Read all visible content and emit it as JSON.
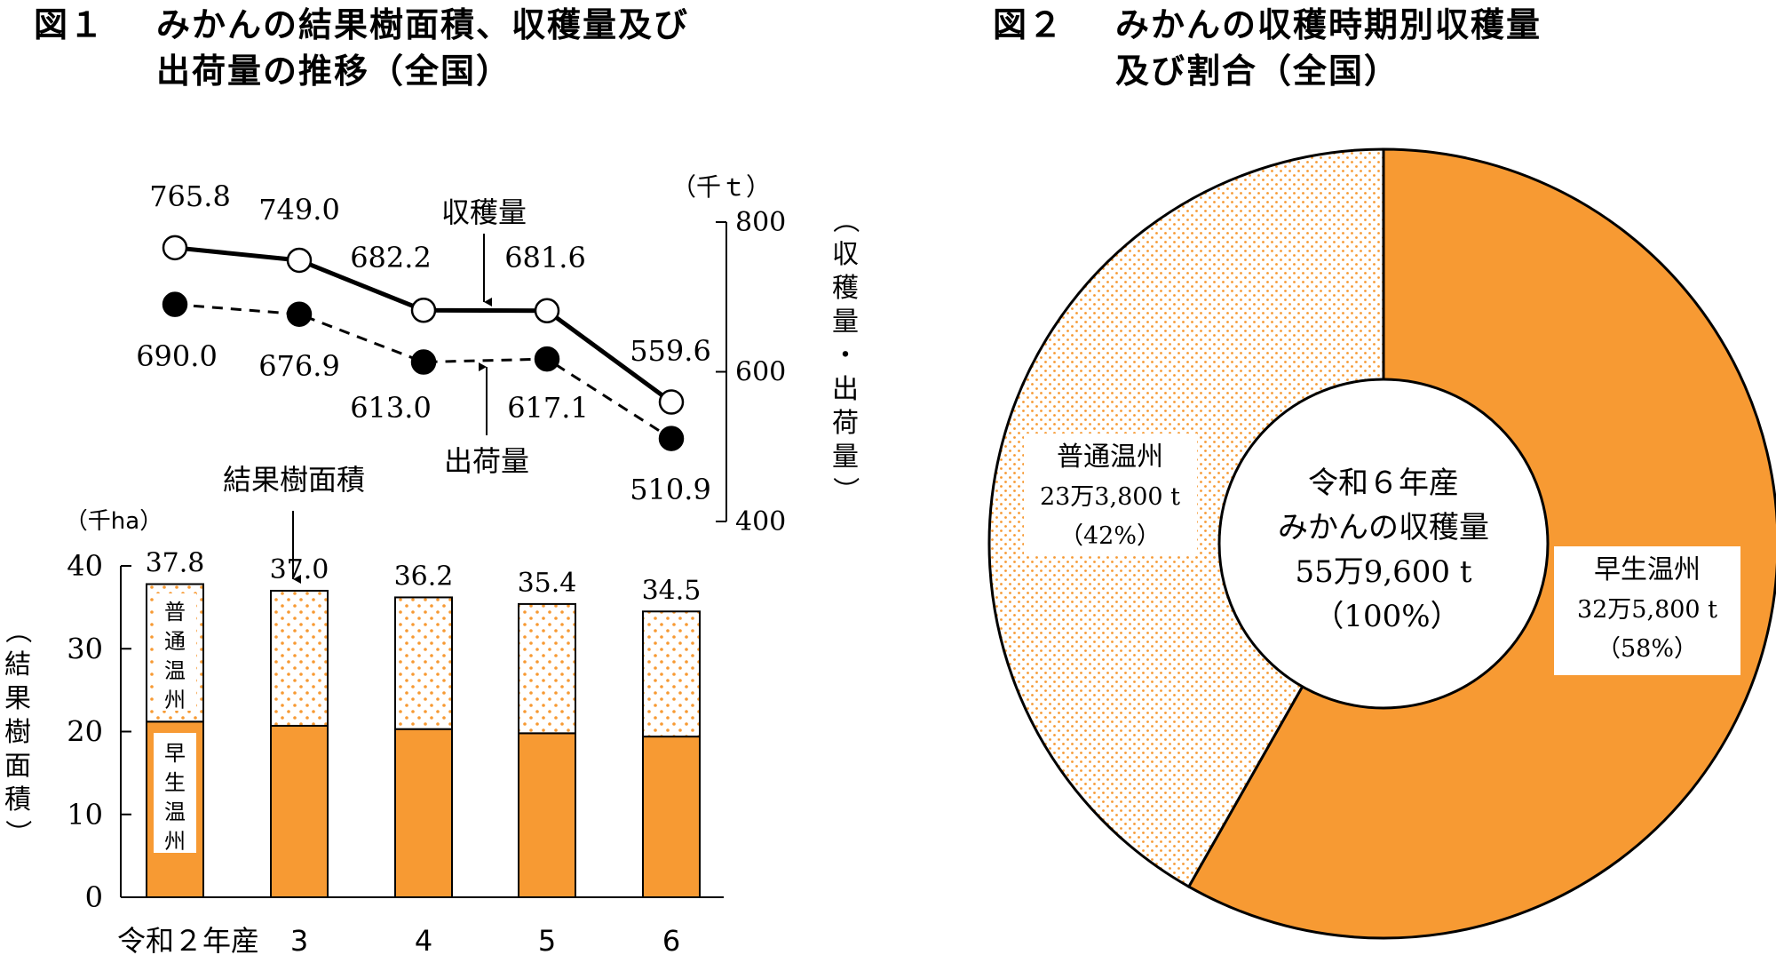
{
  "figure1": {
    "number": "図１",
    "title_line1": "みかんの結果樹面積、収穫量及び",
    "title_line2": "出荷量の推移（全国）"
  },
  "figure2": {
    "number": "図２",
    "title_line1": "みかんの収穫時期別収穫量",
    "title_line2": "及び割合（全国）"
  },
  "chart_data": [
    {
      "type": "line",
      "categories": [
        "令和２年産",
        "3",
        "4",
        "5",
        "6"
      ],
      "series": [
        {
          "name": "収穫量",
          "values": [
            765.8,
            749.0,
            682.2,
            681.6,
            559.6
          ],
          "value_labels": [
            "765.8",
            "749.0",
            "682.2",
            "681.6",
            "559.6"
          ],
          "marker": "open-circle",
          "line": "solid"
        },
        {
          "name": "出荷量",
          "values": [
            690.0,
            676.9,
            613.0,
            617.1,
            510.9
          ],
          "value_labels": [
            "690.0",
            "676.9",
            "613.0",
            "617.1",
            "510.9"
          ],
          "marker": "filled-circle",
          "line": "dashed"
        }
      ],
      "yaxis": {
        "label": "（収穫量・出荷量）",
        "unit": "（千ｔ）",
        "ticks": [
          "800",
          "600",
          "400"
        ],
        "ylim": [
          400,
          800
        ],
        "position": "right"
      }
    },
    {
      "type": "bar",
      "stacked": true,
      "categories": [
        "令和２年産",
        "3",
        "4",
        "5",
        "6"
      ],
      "totals": [
        37.8,
        37.0,
        36.2,
        35.4,
        34.5
      ],
      "total_labels": [
        "37.8",
        "37.0",
        "36.2",
        "35.4",
        "34.5"
      ],
      "series": [
        {
          "name": "早生温州",
          "values": [
            21.2,
            20.7,
            20.3,
            19.8,
            19.4
          ],
          "color": "#F79A33"
        },
        {
          "name": "普通温州",
          "values": [
            16.6,
            16.3,
            15.9,
            15.6,
            15.1
          ],
          "color": "#F79A33",
          "pattern": "dots"
        }
      ],
      "label": "結果樹面積",
      "yaxis": {
        "label": "（結果樹面積）",
        "unit": "（千ha）",
        "ticks": [
          "40",
          "30",
          "20",
          "10",
          "0"
        ],
        "ylim": [
          0,
          40
        ]
      }
    },
    {
      "type": "pie",
      "donut": true,
      "center_label": [
        "令和６年産",
        "みかんの収穫量",
        "55万9,600 t",
        "（100%）"
      ],
      "slices": [
        {
          "name": "早生温州",
          "value": 325800,
          "percent": 58,
          "value_label": "32万5,800 t",
          "percent_label": "（58%）",
          "color": "#F79A33"
        },
        {
          "name": "普通温州",
          "value": 233800,
          "percent": 42,
          "value_label": "23万3,800 t",
          "percent_label": "（42%）",
          "color": "#F79A33",
          "pattern": "dots"
        }
      ]
    }
  ],
  "colors": {
    "orange": "#F79A33",
    "line": "#000000"
  }
}
